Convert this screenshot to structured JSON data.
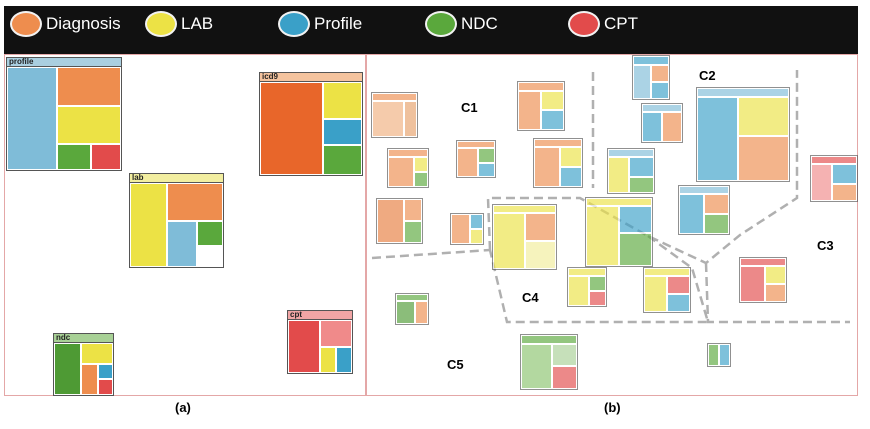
{
  "legend": [
    {
      "label": "Diagnosis",
      "color": "#ee8d4e"
    },
    {
      "label": "LAB",
      "color": "#ece245"
    },
    {
      "label": "Profile",
      "color": "#3aa0c8"
    },
    {
      "label": "NDC",
      "color": "#5aa83c"
    },
    {
      "label": "CPT",
      "color": "#e24b4b"
    }
  ],
  "panels": {
    "a": {
      "caption": "(a)"
    },
    "b": {
      "caption": "(b)"
    }
  },
  "panel_a_glyphs": [
    {
      "label": "profile"
    },
    {
      "label": "lab"
    },
    {
      "label": "icd9"
    },
    {
      "label": "ndc"
    },
    {
      "label": "cpt"
    }
  ],
  "clusters": [
    "C1",
    "C2",
    "C3",
    "C4",
    "C5"
  ]
}
